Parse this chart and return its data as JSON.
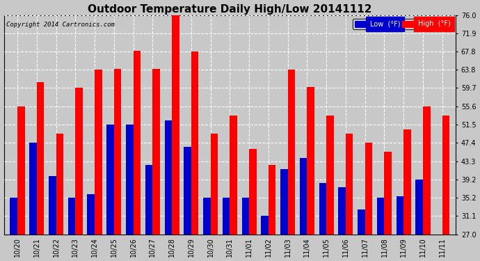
{
  "title": "Outdoor Temperature Daily High/Low 20141112",
  "copyright": "Copyright 2014 Cartronics.com",
  "legend_low": "Low  (°F)",
  "legend_high": "High  (°F)",
  "dates": [
    "10/20",
    "10/21",
    "10/22",
    "10/23",
    "10/24",
    "10/25",
    "10/26",
    "10/27",
    "10/28",
    "10/29",
    "10/30",
    "10/31",
    "11/01",
    "11/02",
    "11/03",
    "11/04",
    "11/05",
    "11/06",
    "11/07",
    "11/08",
    "11/09",
    "11/10",
    "11/11"
  ],
  "highs": [
    55.6,
    61.0,
    49.5,
    59.7,
    63.8,
    64.0,
    68.0,
    64.0,
    76.0,
    67.8,
    49.5,
    53.5,
    46.0,
    42.5,
    63.8,
    60.0,
    53.5,
    49.5,
    47.4,
    45.5,
    50.5,
    55.6,
    53.5
  ],
  "lows": [
    35.2,
    47.4,
    40.0,
    35.2,
    36.0,
    51.5,
    51.5,
    42.5,
    52.5,
    46.5,
    35.2,
    35.2,
    35.2,
    31.1,
    41.5,
    44.0,
    38.5,
    37.5,
    32.5,
    35.2,
    35.5,
    39.2,
    27.0
  ],
  "high_color": "#ff0000",
  "low_color": "#0000cc",
  "bg_color": "#c8c8c8",
  "plot_bg": "#c8c8c8",
  "grid_color": "#ffffff",
  "yticks": [
    27.0,
    31.1,
    35.2,
    39.2,
    43.3,
    47.4,
    51.5,
    55.6,
    59.7,
    63.8,
    67.8,
    71.9,
    76.0
  ],
  "ymin": 27.0,
  "ymax": 76.0,
  "bar_width": 0.38,
  "title_fontsize": 11,
  "tick_fontsize": 7,
  "copyright_fontsize": 6.5
}
